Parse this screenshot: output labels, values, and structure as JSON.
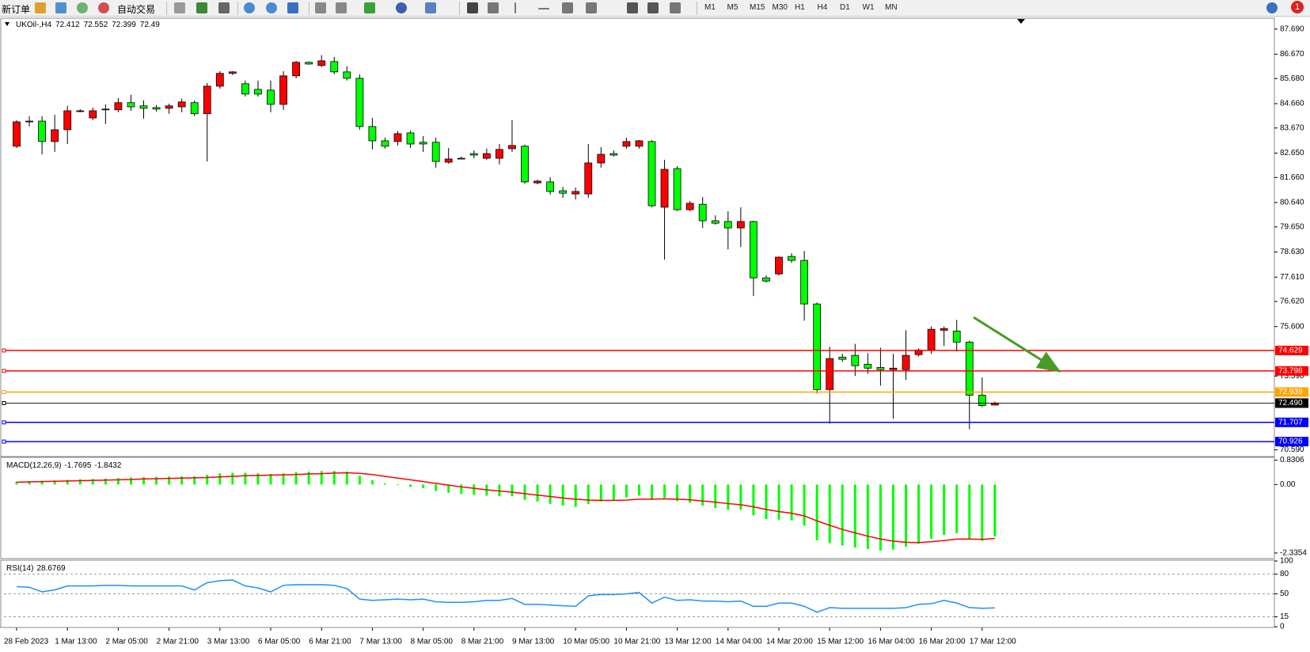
{
  "toolbar": {
    "new_order": "新订单",
    "auto_trading": "自动交易",
    "timeframes": [
      "M1",
      "M5",
      "M15",
      "M30",
      "H1",
      "H4",
      "D1",
      "W1",
      "MN"
    ],
    "alerts": "1"
  },
  "chart_data": [
    {
      "type": "candlestick",
      "symbol": "UKOil-,H4",
      "up_color": "#ff0000",
      "down_color": "#00ff00",
      "categories": [
        "28 Feb 2023",
        null,
        null,
        null,
        "1 Mar 13:00",
        null,
        null,
        null,
        "2 Mar 05:00",
        null,
        null,
        null,
        "2 Mar 21:00",
        null,
        null,
        null,
        "3 Mar 13:00",
        null,
        null,
        null,
        "6 Mar 05:00",
        null,
        null,
        null,
        "6 Mar 21:00",
        null,
        null,
        null,
        "7 Mar 13:00",
        null,
        null,
        null,
        "8 Mar 05:00",
        null,
        null,
        null,
        "8 Mar 21:00",
        null,
        null,
        null,
        "9 Mar 13:00",
        null,
        null,
        null,
        "10 Mar 05:00",
        null,
        null,
        null,
        "10 Mar 21:00",
        null,
        null,
        null,
        "13 Mar 12:00",
        null,
        null,
        null,
        "14 Mar 04:00",
        null,
        null,
        null,
        "14 Mar 20:00",
        null,
        null,
        null,
        "15 Mar 12:00",
        null,
        null,
        null,
        "16 Mar 04:00",
        null,
        null,
        null,
        "16 Mar 20:00",
        null,
        null,
        null,
        "17 Mar 12:00",
        null
      ],
      "candles": [
        [
          82.93,
          83.99,
          82.86,
          83.92
        ],
        [
          83.92,
          84.15,
          83.73,
          83.95
        ],
        [
          83.95,
          84.15,
          82.6,
          83.12
        ],
        [
          83.12,
          84.21,
          82.7,
          83.6
        ],
        [
          83.6,
          84.57,
          83.02,
          84.37
        ],
        [
          84.37,
          84.44,
          84.31,
          84.37
        ],
        [
          84.08,
          84.5,
          83.99,
          84.37
        ],
        [
          84.41,
          84.63,
          83.83,
          84.44
        ],
        [
          84.41,
          84.89,
          84.31,
          84.7
        ],
        [
          84.7,
          85.02,
          84.37,
          84.53
        ],
        [
          84.57,
          84.79,
          84.05,
          84.47
        ],
        [
          84.5,
          84.6,
          84.34,
          84.44
        ],
        [
          84.47,
          84.66,
          84.25,
          84.57
        ],
        [
          84.53,
          84.86,
          84.31,
          84.73
        ],
        [
          84.7,
          84.79,
          84.15,
          84.25
        ],
        [
          84.25,
          85.5,
          82.31,
          85.37
        ],
        [
          85.37,
          85.98,
          85.27,
          85.89
        ],
        [
          85.89,
          85.98,
          85.82,
          85.95
        ],
        [
          85.47,
          85.6,
          84.95,
          85.05
        ],
        [
          85.24,
          85.6,
          84.95,
          85.05
        ],
        [
          85.21,
          85.6,
          84.31,
          84.63
        ],
        [
          84.63,
          85.98,
          84.41,
          85.79
        ],
        [
          85.79,
          86.4,
          85.69,
          86.34
        ],
        [
          86.34,
          86.37,
          86.24,
          86.27
        ],
        [
          86.21,
          86.63,
          86.14,
          86.4
        ],
        [
          86.37,
          86.56,
          85.85,
          85.95
        ],
        [
          85.95,
          86.18,
          85.6,
          85.69
        ],
        [
          85.69,
          85.85,
          83.6,
          83.73
        ],
        [
          83.73,
          84.08,
          82.8,
          83.15
        ],
        [
          83.15,
          83.28,
          82.83,
          82.93
        ],
        [
          83.12,
          83.54,
          82.96,
          83.44
        ],
        [
          83.47,
          83.57,
          82.86,
          83.02
        ],
        [
          83.09,
          83.34,
          82.7,
          83.02
        ],
        [
          83.09,
          83.28,
          82.06,
          82.31
        ],
        [
          82.28,
          82.86,
          82.22,
          82.41
        ],
        [
          82.44,
          82.51,
          82.44,
          82.44
        ],
        [
          82.63,
          82.76,
          82.44,
          82.57
        ],
        [
          82.44,
          82.83,
          82.38,
          82.63
        ],
        [
          82.44,
          83.02,
          82.19,
          82.8
        ],
        [
          82.83,
          83.99,
          82.7,
          82.96
        ],
        [
          82.93,
          82.99,
          81.41,
          81.48
        ],
        [
          81.44,
          81.57,
          81.38,
          81.51
        ],
        [
          81.48,
          81.67,
          80.96,
          81.09
        ],
        [
          81.12,
          81.28,
          80.83,
          81.02
        ],
        [
          80.99,
          81.25,
          80.77,
          81.09
        ],
        [
          80.99,
          83.02,
          80.83,
          82.25
        ],
        [
          82.25,
          82.89,
          82.06,
          82.6
        ],
        [
          82.63,
          82.76,
          82.51,
          82.57
        ],
        [
          82.93,
          83.28,
          82.83,
          83.12
        ],
        [
          82.93,
          83.18,
          82.83,
          83.15
        ],
        [
          83.12,
          83.18,
          80.45,
          80.51
        ],
        [
          80.45,
          82.38,
          78.32,
          81.99
        ],
        [
          82.02,
          82.12,
          80.29,
          80.35
        ],
        [
          80.35,
          80.7,
          80.29,
          80.61
        ],
        [
          80.57,
          80.86,
          79.61,
          79.9
        ],
        [
          79.9,
          80.12,
          79.74,
          79.8
        ],
        [
          79.87,
          80.29,
          78.74,
          79.61
        ],
        [
          79.61,
          80.45,
          78.83,
          79.87
        ],
        [
          79.87,
          79.9,
          76.84,
          77.58
        ],
        [
          77.58,
          77.68,
          77.39,
          77.45
        ],
        [
          77.74,
          78.45,
          77.68,
          78.42
        ],
        [
          78.45,
          78.58,
          78.19,
          78.29
        ],
        [
          78.29,
          78.67,
          75.84,
          76.52
        ],
        [
          76.52,
          76.58,
          72.88,
          73.04
        ],
        [
          73.04,
          74.78,
          71.66,
          74.3
        ],
        [
          74.36,
          74.49,
          74.17,
          74.27
        ],
        [
          74.43,
          74.9,
          73.59,
          74.01
        ],
        [
          74.07,
          74.52,
          73.68,
          73.91
        ],
        [
          73.94,
          74.74,
          73.2,
          73.85
        ],
        [
          73.85,
          74.49,
          71.85,
          73.91
        ],
        [
          73.85,
          75.45,
          73.43,
          74.43
        ],
        [
          74.46,
          74.71,
          74.39,
          74.65
        ],
        [
          74.65,
          75.61,
          74.49,
          75.49
        ],
        [
          75.45,
          75.61,
          74.81,
          75.52
        ],
        [
          75.42,
          75.87,
          74.59,
          74.97
        ],
        [
          74.97,
          75.03,
          71.43,
          72.81
        ],
        [
          72.81,
          73.53,
          72.33,
          72.39
        ],
        [
          72.412,
          72.552,
          72.399,
          72.49
        ]
      ],
      "ylim": [
        70.35,
        88.1
      ],
      "yticks": [
        {
          "value": 87.69,
          "label": "87.690"
        },
        {
          "value": 86.67,
          "label": "86.670"
        },
        {
          "value": 85.68,
          "label": "85.680"
        },
        {
          "value": 84.66,
          "label": "84.660"
        },
        {
          "value": 83.67,
          "label": "83.670"
        },
        {
          "value": 82.65,
          "label": "82.650"
        },
        {
          "value": 81.66,
          "label": "81.660"
        },
        {
          "value": 80.64,
          "label": "80.640"
        },
        {
          "value": 79.65,
          "label": "79.650"
        },
        {
          "value": 78.63,
          "label": "78.630"
        },
        {
          "value": 77.61,
          "label": "77.610"
        },
        {
          "value": 76.62,
          "label": "76.620"
        },
        {
          "value": 75.6,
          "label": "75.600"
        },
        {
          "value": 73.59,
          "label": "73.590"
        },
        {
          "value": 70.59,
          "label": "70.590"
        }
      ],
      "hlines": [
        {
          "value": 74.629,
          "color": "#ff0000"
        },
        {
          "value": 73.798,
          "color": "#ff0000"
        },
        {
          "value": 72.939,
          "color": "#ffa500"
        },
        {
          "value": 72.49,
          "label": "72.490",
          "color": "#000000"
        },
        {
          "value": 71.707,
          "color": "#0000ff"
        },
        {
          "value": 70.926,
          "color": "#0000ff"
        }
      ],
      "grid": false
    },
    {
      "type": "macd",
      "title": "MACD(12,26,9)",
      "color": "#00ff00",
      "values": [
        0.1,
        0.12,
        0.13,
        0.14,
        0.16,
        0.18,
        0.19,
        0.2,
        0.22,
        0.24,
        0.25,
        0.26,
        0.27,
        0.28,
        0.28,
        0.33,
        0.38,
        0.4,
        0.4,
        0.38,
        0.36,
        0.38,
        0.42,
        0.44,
        0.46,
        0.46,
        0.44,
        0.3,
        0.15,
        0.04,
        -0.02,
        -0.08,
        -0.12,
        -0.22,
        -0.28,
        -0.32,
        -0.35,
        -0.38,
        -0.4,
        -0.4,
        -0.52,
        -0.58,
        -0.66,
        -0.72,
        -0.76,
        -0.66,
        -0.58,
        -0.52,
        -0.44,
        -0.38,
        -0.52,
        -0.46,
        -0.56,
        -0.62,
        -0.72,
        -0.8,
        -0.86,
        -0.86,
        -1.05,
        -1.18,
        -1.2,
        -1.22,
        -1.4,
        -1.9,
        -2.0,
        -2.08,
        -2.15,
        -2.2,
        -2.25,
        -2.22,
        -2.12,
        -2.02,
        -1.85,
        -1.72,
        -1.66,
        -1.86,
        -1.92,
        -1.7695
      ],
      "signal": {
        "color": "#ff0000",
        "values": [
          0.08,
          0.09,
          0.1,
          0.11,
          0.12,
          0.13,
          0.14,
          0.15,
          0.16,
          0.17,
          0.19,
          0.2,
          0.21,
          0.22,
          0.23,
          0.24,
          0.26,
          0.28,
          0.3,
          0.31,
          0.32,
          0.33,
          0.34,
          0.36,
          0.37,
          0.39,
          0.4,
          0.38,
          0.34,
          0.28,
          0.22,
          0.16,
          0.1,
          0.04,
          -0.02,
          -0.08,
          -0.13,
          -0.18,
          -0.22,
          -0.26,
          -0.31,
          -0.36,
          -0.41,
          -0.46,
          -0.5,
          -0.53,
          -0.54,
          -0.54,
          -0.53,
          -0.5,
          -0.5,
          -0.49,
          -0.5,
          -0.52,
          -0.56,
          -0.6,
          -0.65,
          -0.69,
          -0.76,
          -0.85,
          -0.92,
          -0.98,
          -1.07,
          -1.24,
          -1.39,
          -1.53,
          -1.65,
          -1.76,
          -1.86,
          -1.93,
          -1.97,
          -1.98,
          -1.95,
          -1.91,
          -1.86,
          -1.86,
          -1.87,
          -1.8432
        ]
      },
      "ylim": [
        -2.5,
        0.9
      ],
      "yticks": [
        0.8306,
        {
          "value": 0,
          "label": "0.00"
        },
        -2.3354
      ],
      "grid": false
    },
    {
      "type": "line",
      "title": "RSI(14)",
      "color": "#1e90ff",
      "values": [
        61,
        60,
        53,
        56,
        62,
        62,
        62,
        63,
        63,
        62,
        62,
        62,
        62,
        62,
        56,
        67,
        70,
        71,
        62,
        59,
        53,
        63,
        64,
        64,
        64,
        63,
        58,
        42,
        40,
        41,
        42,
        41,
        42,
        38,
        37,
        37,
        38,
        40,
        40,
        43,
        34,
        34,
        33,
        32,
        31,
        47,
        49,
        49,
        50,
        52,
        36,
        45,
        40,
        41,
        39,
        39,
        38,
        39,
        31,
        31,
        36,
        36,
        31,
        22,
        29,
        28,
        28,
        28,
        28,
        28,
        29,
        34,
        35,
        40,
        36,
        29,
        28,
        28.6769
      ],
      "ylim": [
        0,
        100
      ],
      "yticks": [
        100,
        80,
        50,
        15,
        0
      ],
      "grid": true
    }
  ]
}
